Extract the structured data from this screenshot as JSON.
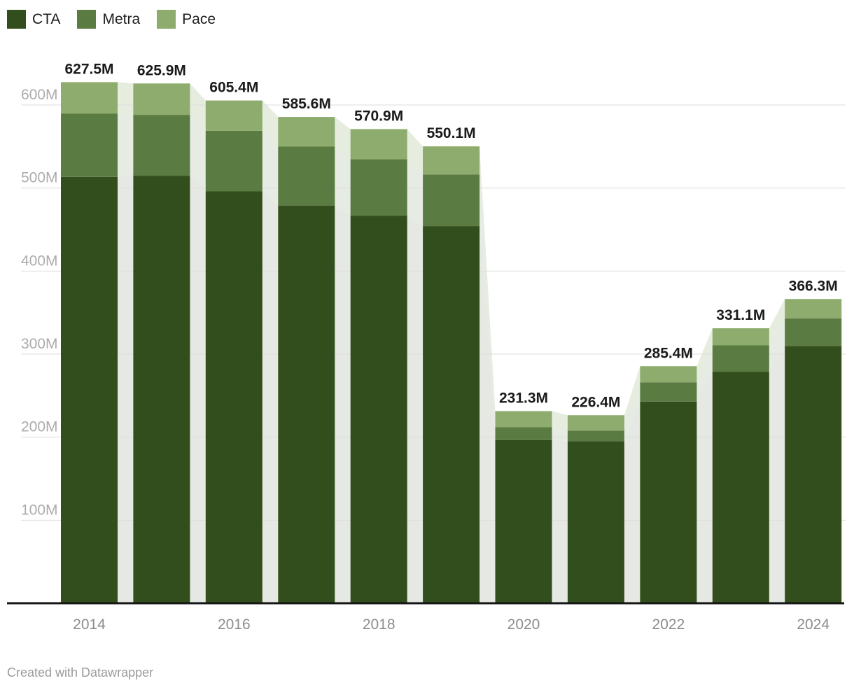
{
  "legend": {
    "items": [
      "CTA",
      "Metra",
      "Pace"
    ]
  },
  "footer": {
    "credit_text": "Created with Datawrapper"
  },
  "chart_data": {
    "type": "bar",
    "stacked": true,
    "title": "",
    "xlabel": "",
    "ylabel": "",
    "categories": [
      "2014",
      "2015",
      "2016",
      "2017",
      "2018",
      "2019",
      "2020",
      "2021",
      "2022",
      "2023",
      "2024"
    ],
    "series": [
      {
        "name": "CTA",
        "color": "#324e1c",
        "values": [
          513.4,
          514.8,
          495.9,
          478.9,
          466.4,
          454.1,
          196.6,
          195.0,
          242.8,
          278.5,
          309.6
        ]
      },
      {
        "name": "Metra",
        "color": "#5a7b41",
        "values": [
          76.3,
          73.3,
          73.1,
          71.0,
          68.2,
          62.1,
          15.4,
          12.9,
          23.2,
          32.0,
          33.3
        ]
      },
      {
        "name": "Pace",
        "color": "#8dac6d",
        "values": [
          37.8,
          37.8,
          36.4,
          35.7,
          36.3,
          33.9,
          19.3,
          18.5,
          19.4,
          20.6,
          23.4
        ]
      }
    ],
    "totals": [
      627.5,
      625.9,
      605.4,
      585.6,
      570.9,
      550.1,
      231.3,
      226.4,
      285.4,
      331.1,
      366.3
    ],
    "total_labels": [
      "627.5M",
      "625.9M",
      "605.4M",
      "585.6M",
      "570.9M",
      "550.1M",
      "231.3M",
      "226.4M",
      "285.4M",
      "331.1M",
      "366.3M"
    ],
    "y_axis": [
      {
        "value": 100,
        "label": "100M"
      },
      {
        "value": 200,
        "label": "200M"
      },
      {
        "value": 300,
        "label": "300M"
      },
      {
        "value": 400,
        "label": "400M"
      },
      {
        "value": 500,
        "label": "500M"
      },
      {
        "value": 600,
        "label": "600M"
      }
    ],
    "x_ticks": [
      {
        "index": 0,
        "label": "2014"
      },
      {
        "index": 2,
        "label": "2016"
      },
      {
        "index": 4,
        "label": "2018"
      },
      {
        "index": 6,
        "label": "2020"
      },
      {
        "index": 8,
        "label": "2022"
      },
      {
        "index": 10,
        "label": "2024"
      }
    ],
    "ylim": [
      0,
      650
    ],
    "grid": true,
    "legend_position": "top-left",
    "background_silhouette": true
  }
}
